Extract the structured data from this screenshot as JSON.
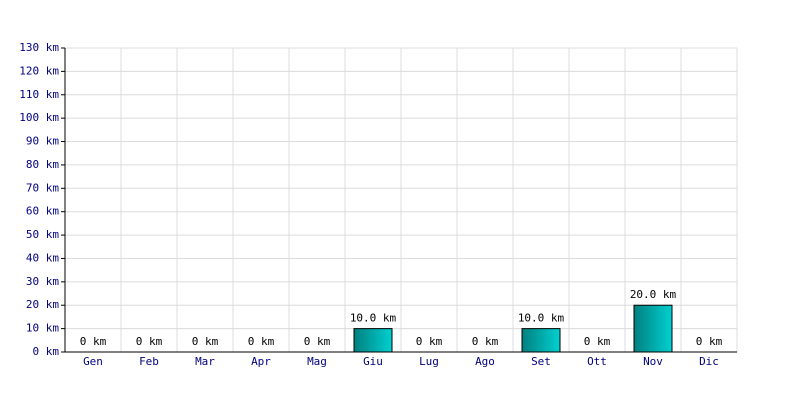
{
  "chart_data": {
    "type": "bar",
    "categories": [
      "Gen",
      "Feb",
      "Mar",
      "Apr",
      "Mag",
      "Giu",
      "Lug",
      "Ago",
      "Set",
      "Ott",
      "Nov",
      "Dic"
    ],
    "values": [
      0,
      0,
      0,
      0,
      0,
      10,
      0,
      0,
      10,
      0,
      20,
      0
    ],
    "value_labels": [
      "0 km",
      "0 km",
      "0 km",
      "0 km",
      "0 km",
      "10.0 km",
      "0 km",
      "0 km",
      "10.0 km",
      "0 km",
      "20.0 km",
      "0 km"
    ],
    "color": "#00d0d0",
    "ylim": [
      0,
      130
    ],
    "yticks": [
      {
        "value": 0,
        "label": "0 km"
      },
      {
        "value": 10,
        "label": "10 km"
      },
      {
        "value": 20,
        "label": "20 km"
      },
      {
        "value": 30,
        "label": "30 km"
      },
      {
        "value": 40,
        "label": "40 km"
      },
      {
        "value": 50,
        "label": "50 km"
      },
      {
        "value": 60,
        "label": "60 km"
      },
      {
        "value": 70,
        "label": "70 km"
      },
      {
        "value": 80,
        "label": "80 km"
      },
      {
        "value": 90,
        "label": "90 km"
      },
      {
        "value": 100,
        "label": "100 km"
      },
      {
        "value": 110,
        "label": "110 km"
      },
      {
        "value": 120,
        "label": "120 km"
      },
      {
        "value": 130,
        "label": "130 km"
      }
    ],
    "grid": true
  }
}
